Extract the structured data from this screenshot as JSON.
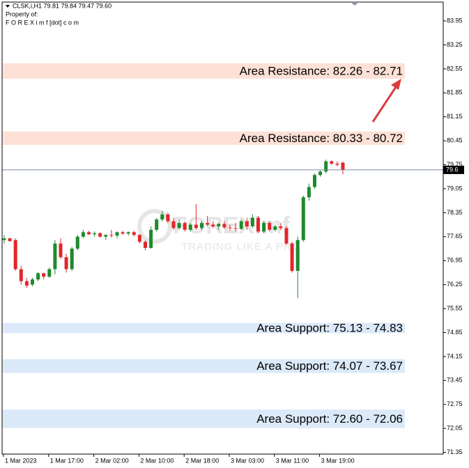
{
  "chart_data": {
    "type": "candlestick",
    "title": "CLSK,i,H1  79.81 79.84 79.47 79.60",
    "subtitle": [
      "Property of:",
      "F O R E X i m f [dot] c o m"
    ],
    "watermark": [
      "FOREXimf",
      "TRADING LIKE A PRO"
    ],
    "categories": [
      "1 Mar 2023",
      null,
      null,
      null,
      null,
      null,
      null,
      null,
      "1 Mar 17:00",
      null,
      null,
      null,
      null,
      null,
      null,
      null,
      "2 Mar 02:00",
      null,
      null,
      null,
      null,
      null,
      null,
      null,
      "2 Mar 10:00",
      null,
      null,
      null,
      null,
      null,
      null,
      null,
      "2 Mar 18:00",
      null,
      null,
      null,
      null,
      null,
      null,
      null,
      "3 Mar 03:00",
      null,
      null,
      null,
      null,
      null,
      null,
      null,
      "3 Mar 11:00",
      null,
      null,
      null,
      null,
      null,
      null,
      null,
      "3 Mar 19:00",
      null,
      null,
      null,
      null
    ],
    "open": [
      77.55,
      77.6,
      77.55,
      76.7,
      76.35,
      76.25,
      76.4,
      76.58,
      76.48,
      76.7,
      77.45,
      77.05,
      76.7,
      77.3,
      77.65,
      77.78,
      77.72,
      77.75,
      77.65,
      77.7,
      77.68,
      77.78,
      77.74,
      77.78,
      77.7,
      77.5,
      77.32,
      77.85,
      78.15,
      78.3,
      78.1,
      77.9,
      78.05,
      77.85,
      78.0,
      77.9,
      78.05,
      78.0,
      77.95,
      78.02,
      77.92,
      77.9,
      77.88,
      78.1,
      77.95,
      78.2,
      77.8,
      78.05,
      77.85,
      77.95,
      77.9,
      77.45,
      76.65,
      77.55,
      78.8,
      79.1,
      79.45,
      79.55,
      79.85,
      79.78,
      79.81
    ],
    "high": [
      77.7,
      77.62,
      77.6,
      76.8,
      76.45,
      76.45,
      76.62,
      76.6,
      76.75,
      77.55,
      77.6,
      77.15,
      77.35,
      77.7,
      77.85,
      77.82,
      77.8,
      77.78,
      77.72,
      77.85,
      77.8,
      77.82,
      77.8,
      77.82,
      77.72,
      77.55,
      77.95,
      78.2,
      78.4,
      78.35,
      78.2,
      78.15,
      78.1,
      78.05,
      78.6,
      78.1,
      78.25,
      78.1,
      78.05,
      78.1,
      78.0,
      78.05,
      78.15,
      78.2,
      78.3,
      78.25,
      78.1,
      78.1,
      78.0,
      78.05,
      77.95,
      77.5,
      77.65,
      78.85,
      79.2,
      79.5,
      79.6,
      79.9,
      79.88,
      79.85,
      79.84
    ],
    "low": [
      77.45,
      77.5,
      76.65,
      76.25,
      76.15,
      76.2,
      76.35,
      76.4,
      76.45,
      76.55,
      77.0,
      76.6,
      76.65,
      77.25,
      77.6,
      77.7,
      77.65,
      77.62,
      77.55,
      77.62,
      77.6,
      77.7,
      77.68,
      77.66,
      77.45,
      77.25,
      77.3,
      77.8,
      78.1,
      78.05,
      77.85,
      77.85,
      77.8,
      77.8,
      77.85,
      77.85,
      77.95,
      77.9,
      77.85,
      77.88,
      77.82,
      77.8,
      77.85,
      77.85,
      77.9,
      77.75,
      77.75,
      77.8,
      77.8,
      77.85,
      77.4,
      76.6,
      75.85,
      77.5,
      78.7,
      79.05,
      79.4,
      79.5,
      79.75,
      79.7,
      79.47
    ],
    "close": [
      77.6,
      77.52,
      76.7,
      76.35,
      76.22,
      76.4,
      76.58,
      76.48,
      76.7,
      77.45,
      77.05,
      76.7,
      77.3,
      77.65,
      77.78,
      77.72,
      77.75,
      77.65,
      77.7,
      77.68,
      77.78,
      77.74,
      77.78,
      77.7,
      77.5,
      77.32,
      77.85,
      78.15,
      78.3,
      78.1,
      77.9,
      78.05,
      77.85,
      78.0,
      77.9,
      78.05,
      78.0,
      77.95,
      78.02,
      77.92,
      77.9,
      77.88,
      78.1,
      77.95,
      78.2,
      77.8,
      78.05,
      77.85,
      77.95,
      77.9,
      77.45,
      76.65,
      77.55,
      78.8,
      79.1,
      79.45,
      79.55,
      79.85,
      79.78,
      79.75,
      79.6
    ],
    "up_color": "#1e8a2e",
    "down_color": "#e2262b",
    "current_price": 79.6,
    "ylim": [
      71.3,
      84.5
    ],
    "yticks": [
      83.95,
      83.25,
      82.55,
      81.85,
      81.15,
      80.45,
      79.75,
      79.05,
      78.35,
      77.65,
      76.95,
      76.25,
      75.55,
      74.85,
      74.15,
      73.45,
      72.75,
      72.05,
      71.35
    ],
    "zones": [
      {
        "label": "Area Resistance: 82.26 - 82.71",
        "values": [
          82.26,
          82.71
        ],
        "color": "#fde1d6"
      },
      {
        "label": "Area Resistance: 80.33 - 80.72",
        "values": [
          80.33,
          80.72
        ],
        "color": "#fde1d6"
      },
      {
        "label": "Area Support: 75.13 - 74.83",
        "values": [
          75.13,
          74.83
        ],
        "color": "#dbe9f8"
      },
      {
        "label": "Area Support: 74.07 - 73.67",
        "values": [
          74.07,
          73.67
        ],
        "color": "#dbe9f8"
      },
      {
        "label": "Area Support: 72.60 - 72.06",
        "values": [
          72.6,
          72.06
        ],
        "color": "#dbe9f8"
      }
    ]
  }
}
